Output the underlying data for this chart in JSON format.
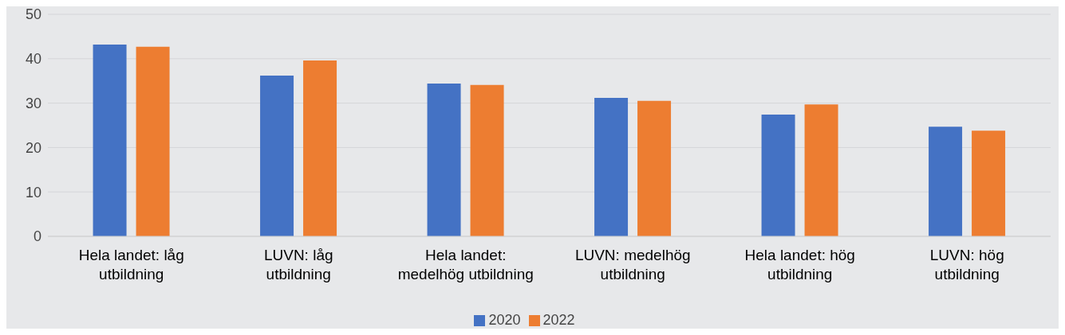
{
  "chart_data": {
    "type": "bar",
    "categories": [
      "Hela landet: låg utbildning",
      "LUVN: låg utbildning",
      "Hela landet: medelhög utbildning",
      "LUVN: medelhög utbildning",
      "Hela landet: hög utbildning",
      "LUVN: hög utbildning"
    ],
    "series": [
      {
        "name": "2020",
        "color": "#4472c4",
        "values": [
          43.2,
          36.2,
          34.4,
          31.2,
          27.4,
          24.7
        ]
      },
      {
        "name": "2022",
        "color": "#ed7d31",
        "values": [
          42.7,
          39.6,
          34.1,
          30.5,
          29.7,
          23.8
        ]
      }
    ],
    "ylim": [
      0,
      50
    ],
    "yticks": [
      0,
      10,
      20,
      30,
      40,
      50
    ],
    "grid": "y",
    "legend": "bottom"
  }
}
